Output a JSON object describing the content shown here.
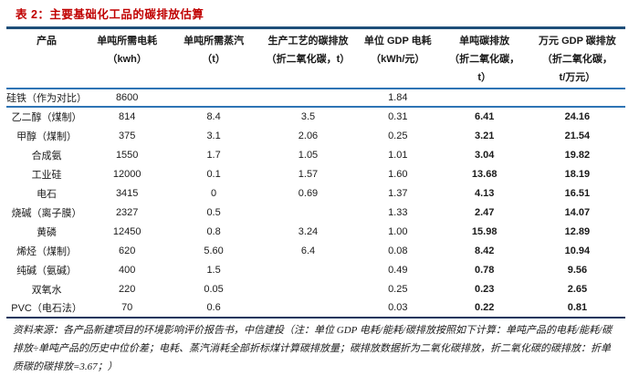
{
  "title": "表 2：主要基础化工品的碳排放估算",
  "table": {
    "header": [
      [
        "产品"
      ],
      [
        "单吨所需电耗",
        "（kwh）"
      ],
      [
        "单吨所需蒸汽",
        "（t）"
      ],
      [
        "生产工艺的碳排放",
        "（折二氧化碳，t）"
      ],
      [
        "单位 GDP 电耗",
        "（kWh/元）"
      ],
      [
        "单吨碳排放",
        "（折二氧化碳，",
        "t）"
      ],
      [
        "万元 GDP 碳排放",
        "（折二氧化碳，",
        "t/万元）"
      ]
    ],
    "bold_value_columns": [
      5,
      6
    ],
    "rows": [
      [
        "硅铁（作为对比）",
        "8600",
        "",
        "",
        "1.84",
        "",
        ""
      ],
      [
        "乙二醇（煤制）",
        "814",
        "8.4",
        "3.5",
        "0.31",
        "6.41",
        "24.16"
      ],
      [
        "甲醇（煤制）",
        "375",
        "3.1",
        "2.06",
        "0.25",
        "3.21",
        "21.54"
      ],
      [
        "合成氨",
        "1550",
        "1.7",
        "1.05",
        "1.01",
        "3.04",
        "19.82"
      ],
      [
        "工业硅",
        "12000",
        "0.1",
        "1.57",
        "1.60",
        "13.68",
        "18.19"
      ],
      [
        "电石",
        "3415",
        "0",
        "0.69",
        "1.37",
        "4.13",
        "16.51"
      ],
      [
        "烧碱（离子膜）",
        "2327",
        "0.5",
        "",
        "1.33",
        "2.47",
        "14.07"
      ],
      [
        "黄磷",
        "12450",
        "0.8",
        "3.24",
        "1.00",
        "15.98",
        "12.89"
      ],
      [
        "烯烃（煤制）",
        "620",
        "5.60",
        "6.4",
        "0.08",
        "8.42",
        "10.94"
      ],
      [
        "纯碱（氨碱）",
        "400",
        "1.5",
        "",
        "0.49",
        "0.78",
        "9.56"
      ],
      [
        "双氧水",
        "220",
        "0.05",
        "",
        "0.25",
        "0.23",
        "2.65"
      ],
      [
        "PVC（电石法）",
        "70",
        "0.6",
        "",
        "0.03",
        "0.22",
        "0.81"
      ]
    ]
  },
  "footnote": {
    "lines": [
      "资料来源：各产品新建项目的环境影响评价报告书，中信建投（注：单位 GDP 电耗/能耗/碳排放按照如下计算：单吨产品的电耗/能耗/碳",
      "排放÷单吨产品的历史中位价差；电耗、蒸汽消耗全部折标煤计算碳排放量；碳排放数据折为二氧化碳排放，折二氧化碳的碳排放：折单",
      "质碳的碳排放=3.67；）"
    ]
  },
  "colors": {
    "title_red": "#C00000",
    "rule_navy_thick": "#1F4E79",
    "rule_blue_thin": "#2E74B5",
    "rule_bottom_dark": "#17365D"
  }
}
